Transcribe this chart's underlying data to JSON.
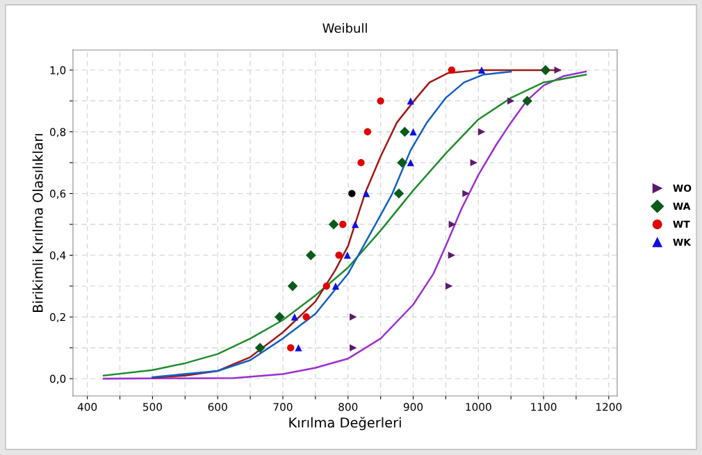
{
  "chart_data": {
    "type": "scatter",
    "title": "Weibull",
    "xlabel": "Kırılma Değerleri",
    "ylabel": "Birikimli Kırılma Olasılıkları",
    "xlim": [
      378,
      1213
    ],
    "ylim": [
      -0.056,
      1.065
    ],
    "xticks": [
      400,
      {
        "value": 450,
        "label": null
      },
      500,
      {
        "value": 550,
        "label": null
      },
      600,
      {
        "value": 650,
        "label": null
      },
      700,
      {
        "value": 750,
        "label": null
      },
      800,
      {
        "value": 850,
        "label": null
      },
      900,
      {
        "value": 950,
        "label": null
      },
      1000,
      {
        "value": 1050,
        "label": null
      },
      1100,
      {
        "value": 1150,
        "label": null
      },
      1200
    ],
    "yticks": [
      {
        "value": 0,
        "label": "0,0"
      },
      {
        "value": 0.1,
        "label": null
      },
      {
        "value": 0.2,
        "label": "0,2"
      },
      {
        "value": 0.3,
        "label": null
      },
      {
        "value": 0.4,
        "label": "0,4"
      },
      {
        "value": 0.5,
        "label": null
      },
      {
        "value": 0.6,
        "label": "0,6"
      },
      {
        "value": 0.7,
        "label": null
      },
      {
        "value": 0.8,
        "label": "0,8"
      },
      {
        "value": 0.9,
        "label": null
      },
      {
        "value": 1.0,
        "label": "1,0"
      }
    ],
    "grid": true,
    "legend": "right",
    "series": [
      {
        "name": "WO",
        "marker": "triangle_right",
        "color": "#5c1a6e",
        "x": [
          808,
          808,
          955,
          959,
          960,
          981,
          993,
          1005,
          1050,
          1122
        ],
        "values": [
          0.1,
          0.2,
          0.3,
          0.4,
          0.5,
          0.6,
          0.7,
          0.8,
          0.9,
          1.0
        ]
      },
      {
        "name": "WA",
        "marker": "diamond",
        "color": "#0a5a1a",
        "x": [
          665,
          695,
          715,
          743,
          778,
          878,
          883,
          887,
          1075,
          1103
        ],
        "values": [
          0.1,
          0.2,
          0.3,
          0.4,
          0.5,
          0.6,
          0.7,
          0.8,
          0.9,
          1.0
        ]
      },
      {
        "name": "WT",
        "marker": "circle",
        "color": "#e00000",
        "colors": [
          "#e00000",
          "#e00000",
          "#e00000",
          "#e00000",
          "#e00000",
          "#000000",
          "#e00000",
          "#e00000",
          "#e00000",
          "#e00000"
        ],
        "x": [
          712,
          736,
          767,
          786,
          792,
          806,
          820,
          830,
          850,
          959
        ],
        "values": [
          0.1,
          0.2,
          0.3,
          0.4,
          0.5,
          0.6,
          0.7,
          0.8,
          0.9,
          1.0
        ]
      },
      {
        "name": "WK",
        "marker": "triangle",
        "color": "#1010e0",
        "x": [
          724,
          718,
          781,
          799,
          811,
          828,
          896,
          900,
          896,
          1005
        ],
        "values": [
          0.1,
          0.2,
          0.3,
          0.4,
          0.5,
          0.6,
          0.7,
          0.8,
          0.9,
          1.0
        ]
      },
      {
        "type": "line",
        "color": "#9a2fd0",
        "x": [
          425,
          625,
          700,
          750,
          800,
          850,
          900,
          931,
          950,
          974,
          1000,
          1028,
          1050,
          1074,
          1100,
          1130,
          1165
        ],
        "values": [
          0.0,
          0.002,
          0.015,
          0.035,
          0.065,
          0.13,
          0.24,
          0.34,
          0.43,
          0.55,
          0.66,
          0.76,
          0.83,
          0.9,
          0.95,
          0.98,
          0.995
        ]
      },
      {
        "type": "line",
        "color": "#1e8c2c",
        "x": [
          425,
          500,
          550,
          600,
          650,
          700,
          750,
          800,
          850,
          900,
          950,
          1000,
          1050,
          1100,
          1165
        ],
        "values": [
          0.01,
          0.028,
          0.05,
          0.08,
          0.13,
          0.19,
          0.27,
          0.36,
          0.48,
          0.61,
          0.73,
          0.84,
          0.91,
          0.96,
          0.985
        ]
      },
      {
        "type": "line",
        "color": "#a01818",
        "x": [
          500,
          550,
          600,
          650,
          700,
          750,
          780,
          800,
          826,
          850,
          875,
          905,
          925,
          953,
          1000,
          1125
        ],
        "values": [
          0.003,
          0.01,
          0.025,
          0.07,
          0.15,
          0.25,
          0.35,
          0.43,
          0.6,
          0.72,
          0.83,
          0.91,
          0.96,
          0.99,
          1.0,
          1.0
        ]
      },
      {
        "type": "line",
        "color": "#1060c0",
        "x": [
          500,
          600,
          650,
          700,
          750,
          800,
          829,
          850,
          868,
          896,
          921,
          950,
          978,
          1007,
          1050
        ],
        "values": [
          0.005,
          0.025,
          0.06,
          0.13,
          0.21,
          0.34,
          0.45,
          0.53,
          0.6,
          0.74,
          0.83,
          0.91,
          0.96,
          0.985,
          0.995
        ]
      }
    ]
  }
}
